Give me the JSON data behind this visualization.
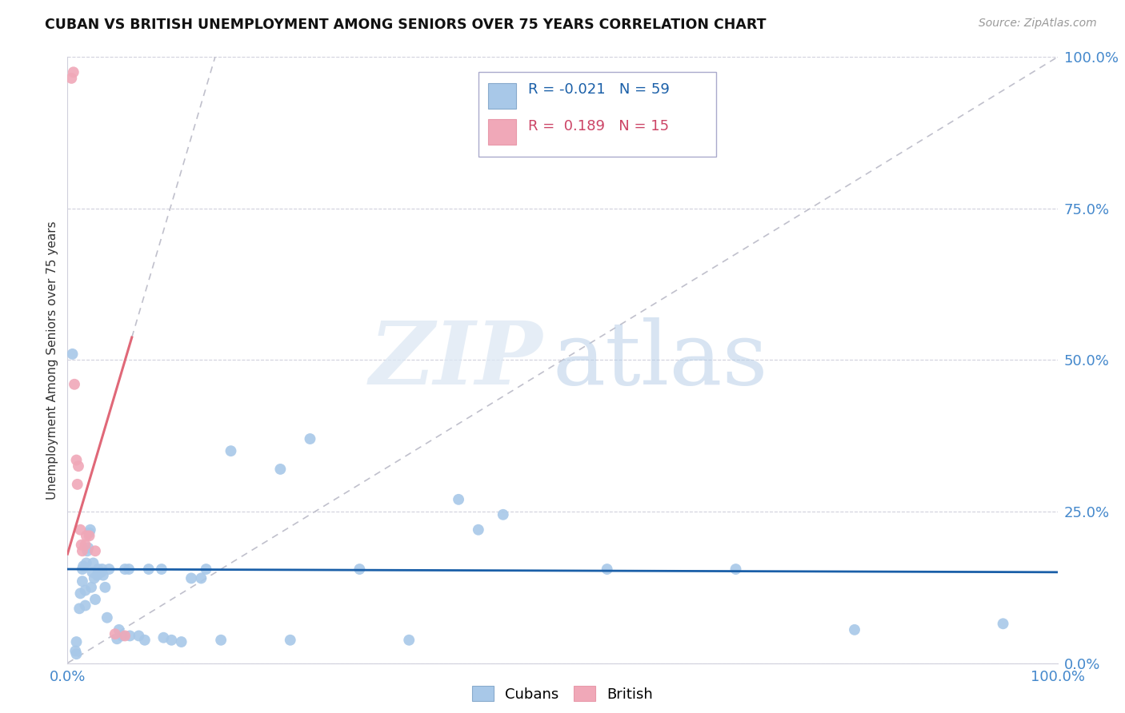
{
  "title": "CUBAN VS BRITISH UNEMPLOYMENT AMONG SENIORS OVER 75 YEARS CORRELATION CHART",
  "source": "Source: ZipAtlas.com",
  "ylabel": "Unemployment Among Seniors over 75 years",
  "xlim": [
    0,
    1.0
  ],
  "ylim": [
    0,
    1.0
  ],
  "ytick_labels": [
    "0.0%",
    "25.0%",
    "50.0%",
    "75.0%",
    "100.0%"
  ],
  "ytick_positions": [
    0.0,
    0.25,
    0.5,
    0.75,
    1.0
  ],
  "legend_cubans_R": "-0.021",
  "legend_cubans_N": "59",
  "legend_british_R": "0.189",
  "legend_british_N": "15",
  "cubans_color": "#a8c8e8",
  "british_color": "#f0a8b8",
  "trendline_cubans_color": "#1a5fa8",
  "trendline_british_color": "#e06878",
  "trendline_diagonal_color": "#c0c0cc",
  "cubans_trendline_intercept": 0.155,
  "cubans_trendline_slope": -0.005,
  "british_trendline_intercept": 0.18,
  "british_trendline_slope": 5.5,
  "cubans_scatter": [
    [
      0.005,
      0.51
    ],
    [
      0.008,
      0.02
    ],
    [
      0.009,
      0.035
    ],
    [
      0.009,
      0.015
    ],
    [
      0.012,
      0.09
    ],
    [
      0.013,
      0.115
    ],
    [
      0.015,
      0.135
    ],
    [
      0.015,
      0.155
    ],
    [
      0.016,
      0.16
    ],
    [
      0.018,
      0.095
    ],
    [
      0.018,
      0.12
    ],
    [
      0.019,
      0.165
    ],
    [
      0.02,
      0.185
    ],
    [
      0.021,
      0.19
    ],
    [
      0.022,
      0.215
    ],
    [
      0.023,
      0.22
    ],
    [
      0.024,
      0.125
    ],
    [
      0.025,
      0.15
    ],
    [
      0.026,
      0.165
    ],
    [
      0.027,
      0.14
    ],
    [
      0.028,
      0.105
    ],
    [
      0.03,
      0.145
    ],
    [
      0.031,
      0.155
    ],
    [
      0.034,
      0.15
    ],
    [
      0.035,
      0.155
    ],
    [
      0.036,
      0.145
    ],
    [
      0.038,
      0.125
    ],
    [
      0.04,
      0.075
    ],
    [
      0.042,
      0.155
    ],
    [
      0.05,
      0.04
    ],
    [
      0.052,
      0.055
    ],
    [
      0.055,
      0.045
    ],
    [
      0.058,
      0.155
    ],
    [
      0.062,
      0.155
    ],
    [
      0.063,
      0.045
    ],
    [
      0.072,
      0.045
    ],
    [
      0.078,
      0.038
    ],
    [
      0.082,
      0.155
    ],
    [
      0.095,
      0.155
    ],
    [
      0.097,
      0.042
    ],
    [
      0.105,
      0.038
    ],
    [
      0.115,
      0.035
    ],
    [
      0.125,
      0.14
    ],
    [
      0.135,
      0.14
    ],
    [
      0.14,
      0.155
    ],
    [
      0.155,
      0.038
    ],
    [
      0.165,
      0.35
    ],
    [
      0.215,
      0.32
    ],
    [
      0.225,
      0.038
    ],
    [
      0.245,
      0.37
    ],
    [
      0.295,
      0.155
    ],
    [
      0.345,
      0.038
    ],
    [
      0.395,
      0.27
    ],
    [
      0.415,
      0.22
    ],
    [
      0.44,
      0.245
    ],
    [
      0.545,
      0.155
    ],
    [
      0.675,
      0.155
    ],
    [
      0.795,
      0.055
    ],
    [
      0.945,
      0.065
    ]
  ],
  "british_scatter": [
    [
      0.004,
      0.965
    ],
    [
      0.006,
      0.975
    ],
    [
      0.007,
      0.46
    ],
    [
      0.009,
      0.335
    ],
    [
      0.01,
      0.295
    ],
    [
      0.011,
      0.325
    ],
    [
      0.013,
      0.22
    ],
    [
      0.014,
      0.195
    ],
    [
      0.015,
      0.185
    ],
    [
      0.018,
      0.195
    ],
    [
      0.019,
      0.21
    ],
    [
      0.022,
      0.21
    ],
    [
      0.028,
      0.185
    ],
    [
      0.048,
      0.048
    ],
    [
      0.058,
      0.045
    ]
  ]
}
